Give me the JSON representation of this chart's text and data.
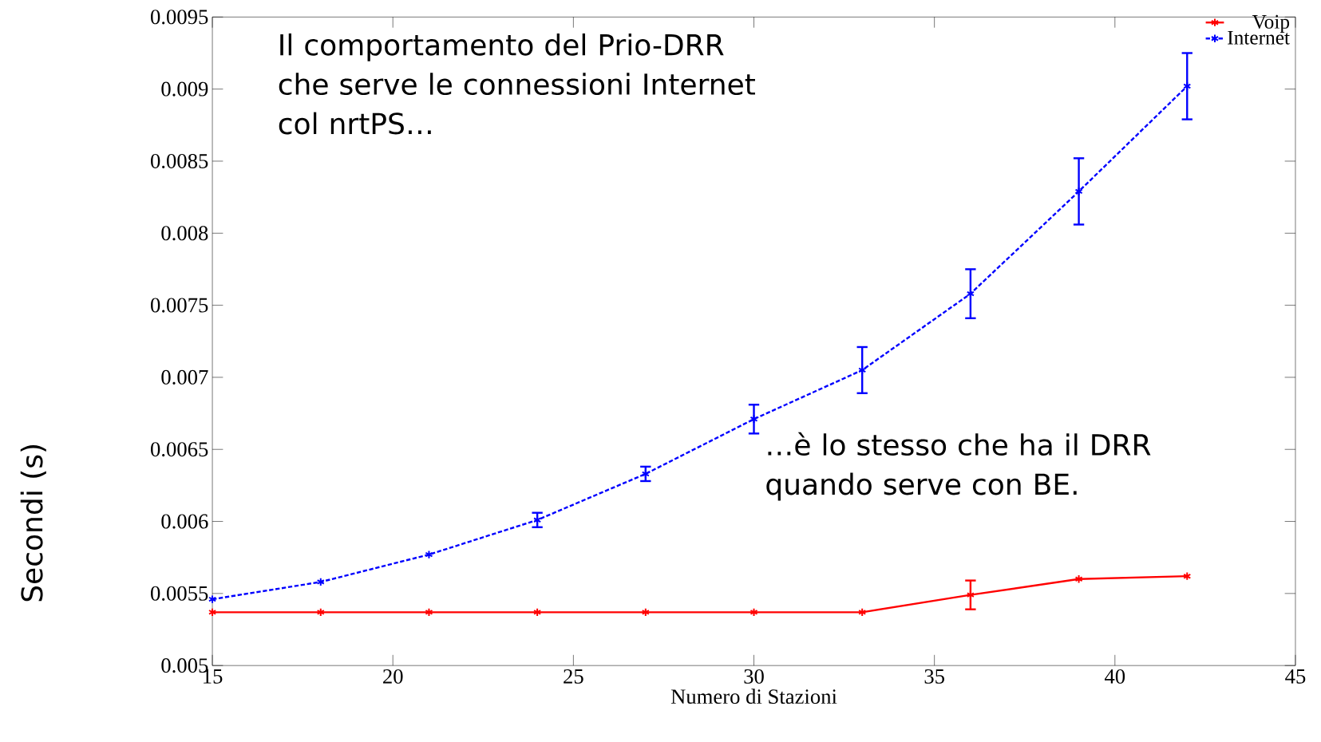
{
  "chart_data": {
    "type": "line",
    "xlabel": "Numero di Stazioni",
    "ylabel": "Secondi (s)",
    "x": [
      15,
      18,
      21,
      24,
      27,
      30,
      33,
      36,
      39,
      42
    ],
    "series": [
      {
        "name": "Voip",
        "color": "#ff0000",
        "values": [
          0.00537,
          0.00537,
          0.00537,
          0.00537,
          0.00537,
          0.00537,
          0.00537,
          0.00549,
          0.0056,
          0.00562
        ],
        "errors": [
          null,
          null,
          null,
          null,
          null,
          null,
          null,
          0.0001,
          null,
          null
        ],
        "marker": "cross",
        "line_style": "solid"
      },
      {
        "name": "Internet",
        "color": "#0000ff",
        "values": [
          0.00546,
          0.00558,
          0.00577,
          0.00601,
          0.00633,
          0.00671,
          0.00705,
          0.00758,
          0.00829,
          0.00902
        ],
        "errors": [
          null,
          null,
          null,
          5e-05,
          5e-05,
          0.0001,
          0.00016,
          0.00017,
          0.00023,
          0.00023
        ],
        "marker": "cross",
        "line_style": "dashed"
      }
    ],
    "xlim": [
      15,
      45
    ],
    "xticks": [
      15,
      20,
      25,
      30,
      35,
      40,
      45
    ],
    "ylim": [
      0.005,
      0.0095
    ],
    "yticks": [
      0.005,
      0.0055,
      0.006,
      0.0065,
      0.007,
      0.0075,
      0.008,
      0.0085,
      0.009,
      0.0095
    ],
    "grid": false,
    "legend": "top right",
    "annotations": [
      "Il comportamento del Prio-DRR che serve le connessioni Internet col nrtPS…",
      "…è lo stesso che ha il DRR quando serve con BE."
    ]
  }
}
